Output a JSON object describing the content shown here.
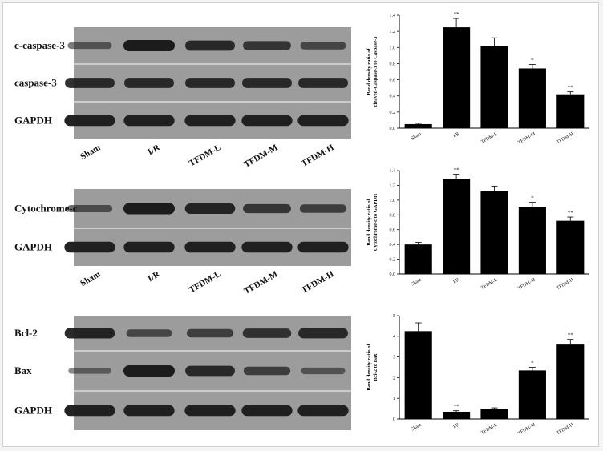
{
  "figure": {
    "colors": {
      "blot_bg": "#9c9c9c",
      "band": "#1c1c1c",
      "bar": "#000000"
    },
    "lanes": [
      "Sham",
      "I/R",
      "TFDM-L",
      "TFDM-M",
      "TFDM-H"
    ],
    "blots": [
      {
        "rows": [
          {
            "label": "c-caspase-3",
            "intensity": [
              0.35,
              1.0,
              0.85,
              0.7,
              0.5
            ]
          },
          {
            "label": "caspase-3",
            "intensity": [
              0.85,
              0.85,
              0.85,
              0.85,
              0.85
            ]
          },
          {
            "label": "GAPDH",
            "intensity": [
              0.95,
              0.95,
              0.95,
              0.95,
              0.95
            ]
          }
        ]
      },
      {
        "rows": [
          {
            "label": "Cytochrome-c",
            "intensity": [
              0.45,
              1.0,
              0.9,
              0.7,
              0.6
            ]
          },
          {
            "label": "GAPDH",
            "intensity": [
              0.95,
              0.95,
              0.95,
              0.95,
              0.95
            ]
          }
        ]
      },
      {
        "rows": [
          {
            "label": "Bcl-2",
            "intensity": [
              0.9,
              0.5,
              0.6,
              0.75,
              0.85
            ]
          },
          {
            "label": "Bax",
            "intensity": [
              0.25,
              1.0,
              0.85,
              0.6,
              0.35
            ]
          },
          {
            "label": "GAPDH",
            "intensity": [
              0.95,
              0.95,
              0.95,
              0.95,
              0.95
            ]
          }
        ]
      }
    ]
  },
  "chart_data": [
    {
      "type": "bar",
      "categories": [
        "Sham",
        "I/R",
        "TFDM-L",
        "TFDM-M",
        "TFDM-H"
      ],
      "values": [
        0.05,
        1.25,
        1.02,
        0.74,
        0.42
      ],
      "errors": [
        0.01,
        0.11,
        0.1,
        0.05,
        0.03
      ],
      "significance": [
        "",
        "**",
        "",
        "*",
        "**"
      ],
      "ylabel": [
        "Band density ratio of",
        "cleaved-Caspase-3 to Caspase-3"
      ],
      "ylim": [
        0,
        1.4
      ],
      "yticks": [
        "0.0",
        "0.2",
        "0.4",
        "0.6",
        "0.8",
        "1.0",
        "1.2",
        "1.4"
      ]
    },
    {
      "type": "bar",
      "categories": [
        "Sham",
        "I/R",
        "TFDM-L",
        "TFDM-M",
        "TFDM-H"
      ],
      "values": [
        0.4,
        1.29,
        1.12,
        0.91,
        0.72
      ],
      "errors": [
        0.03,
        0.06,
        0.07,
        0.06,
        0.05
      ],
      "significance": [
        "",
        "**",
        "",
        "*",
        "**"
      ],
      "ylabel": [
        "Band density ratio of",
        "Cytochrome-c to GAPDH"
      ],
      "ylim": [
        0,
        1.4
      ],
      "yticks": [
        "0.0",
        "0.2",
        "0.4",
        "0.6",
        "0.8",
        "1.0",
        "1.2",
        "1.4"
      ]
    },
    {
      "type": "bar",
      "categories": [
        "Sham",
        "I/R",
        "TFDM-L",
        "TFDM-M",
        "TFDM-H"
      ],
      "values": [
        4.25,
        0.35,
        0.5,
        2.35,
        3.6
      ],
      "errors": [
        0.4,
        0.05,
        0.04,
        0.15,
        0.25
      ],
      "significance": [
        "",
        "**",
        "",
        "*",
        "**"
      ],
      "ylabel": [
        "Band density ratio of",
        "Bcl-2 to Bax"
      ],
      "ylim": [
        0,
        5
      ],
      "yticks": [
        "0",
        "1",
        "2",
        "3",
        "4",
        "5"
      ]
    }
  ]
}
